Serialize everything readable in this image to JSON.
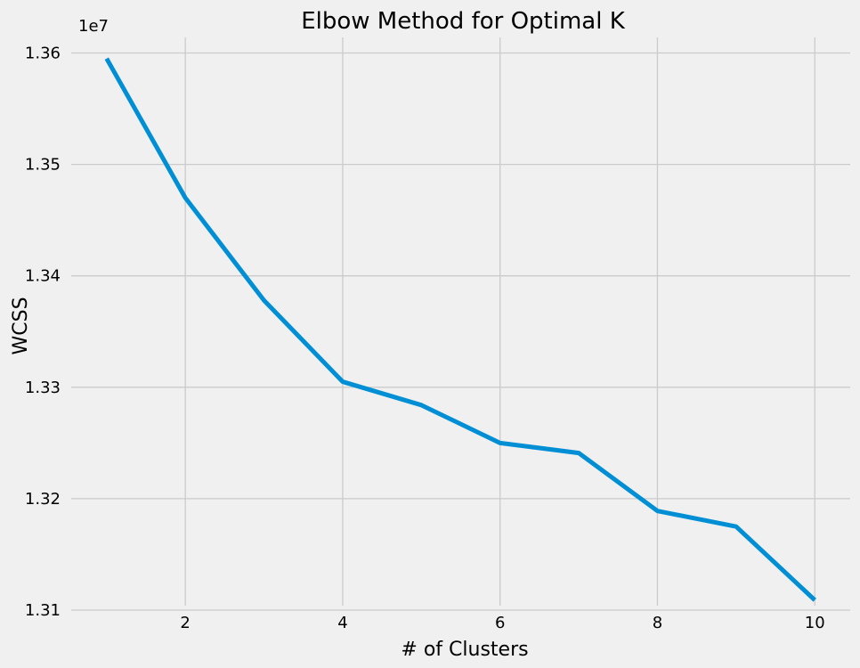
{
  "chart_data": {
    "type": "line",
    "title": "Elbow Method for Optimal K",
    "xlabel": "# of Clusters",
    "ylabel": "WCSS",
    "y_offset_label": "1e7",
    "x": [
      1,
      2,
      3,
      4,
      5,
      6,
      7,
      8,
      9,
      10
    ],
    "series": [
      {
        "values": [
          13595000,
          13470000,
          13378000,
          13305000,
          13284000,
          13250000,
          13241000,
          13189000,
          13175000,
          13109000
        ]
      }
    ],
    "xlim": [
      0.55,
      10.45
    ],
    "ylim": [
      13104000,
      13614000
    ],
    "x_ticks": [
      2,
      4,
      6,
      8,
      10
    ],
    "x_tick_labels": [
      "2",
      "4",
      "6",
      "8",
      "10"
    ],
    "y_ticks": [
      13100000,
      13200000,
      13300000,
      13400000,
      13500000,
      13600000
    ],
    "y_tick_labels": [
      "1.31",
      "1.32",
      "1.33",
      "1.34",
      "1.35",
      "1.36"
    ],
    "grid": true,
    "line_color": "#008fd5",
    "background_color": "#f0f0f0",
    "grid_color": "#cbcbcb"
  }
}
